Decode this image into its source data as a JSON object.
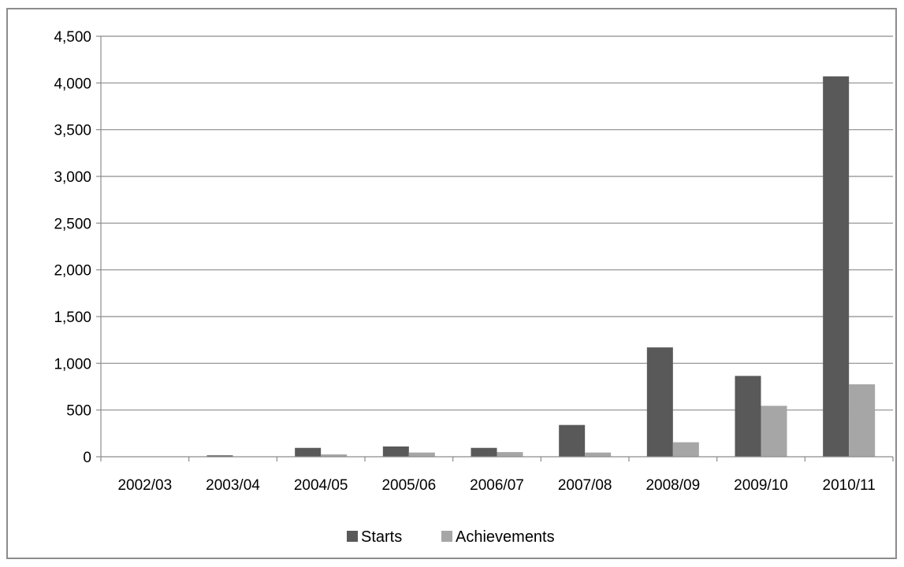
{
  "chart_data": {
    "type": "bar",
    "title": "",
    "xlabel": "",
    "ylabel": "",
    "categories": [
      "2002/03",
      "2003/04",
      "2004/05",
      "2005/06",
      "2006/07",
      "2007/08",
      "2008/09",
      "2009/10",
      "2010/11"
    ],
    "series": [
      {
        "name": "Starts",
        "color": "#595959",
        "values": [
          0,
          15,
          95,
          110,
          95,
          340,
          1170,
          865,
          4070
        ]
      },
      {
        "name": "Achievements",
        "color": "#a6a6a6",
        "values": [
          0,
          0,
          25,
          45,
          50,
          45,
          155,
          545,
          775
        ]
      }
    ],
    "ylim": [
      0,
      4500
    ],
    "yticks": [
      0,
      500,
      1000,
      1500,
      2000,
      2500,
      3000,
      3500,
      4000,
      4500
    ],
    "ytick_labels": [
      "0",
      "500",
      "1,000",
      "1,500",
      "2,000",
      "2,500",
      "3,000",
      "3,500",
      "4,000",
      "4,500"
    ],
    "grid": true,
    "legend_position": "bottom"
  }
}
